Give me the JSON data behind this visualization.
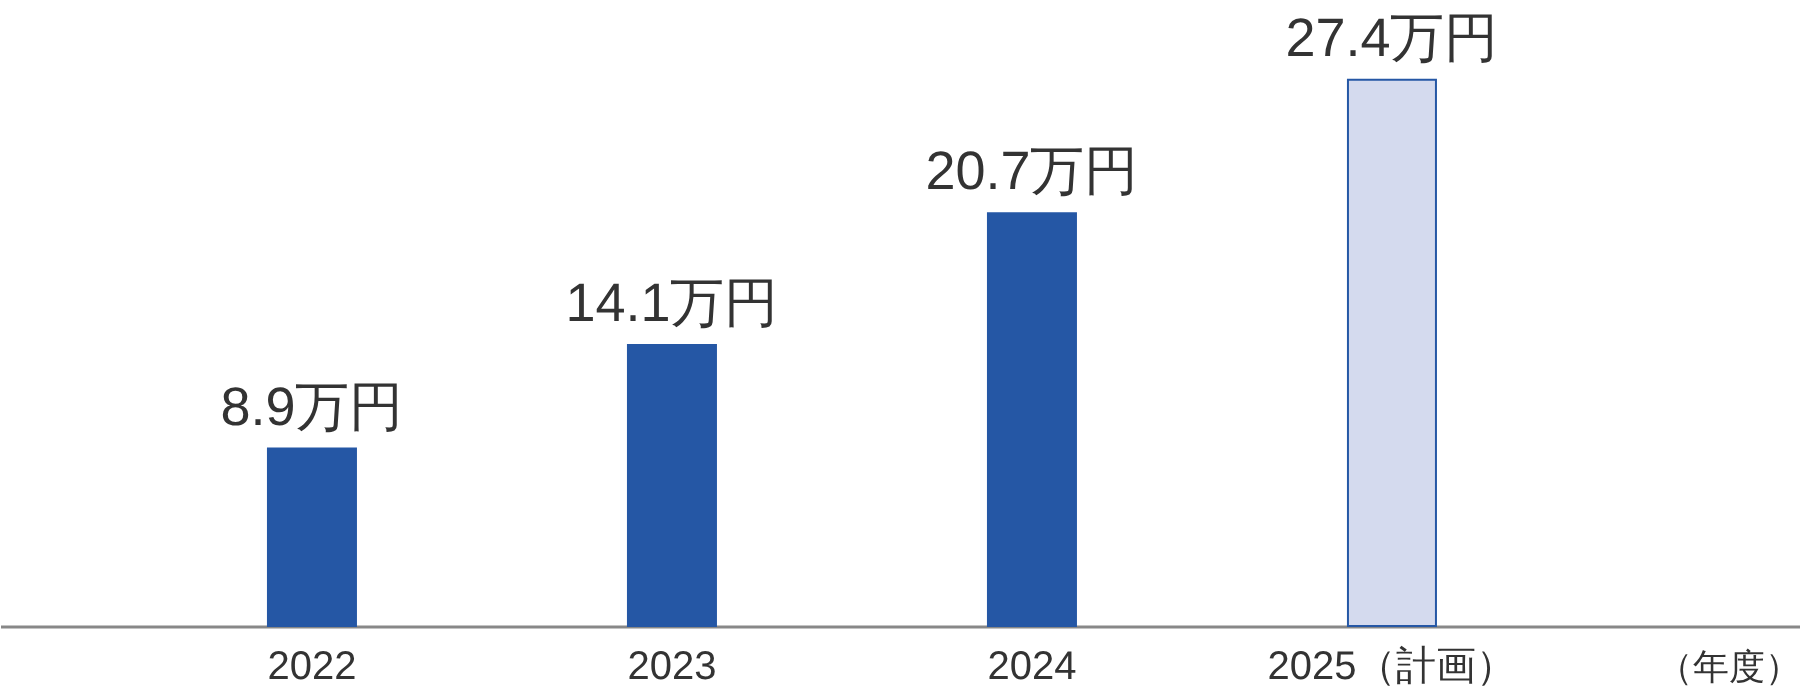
{
  "chart_data": {
    "type": "bar",
    "xlabel": "（年度）",
    "categories": [
      "2022",
      "2023",
      "2024",
      "2025（計画）"
    ],
    "values": [
      8.9,
      14.1,
      20.7,
      27.4
    ],
    "colors": [
      "#2557a5",
      "#2557a5",
      "#2557a5",
      "#d4daee"
    ],
    "value_labels": [
      "8.9万円",
      "14.1万円",
      "20.7万円",
      "27.4万円"
    ],
    "grid": false
  }
}
